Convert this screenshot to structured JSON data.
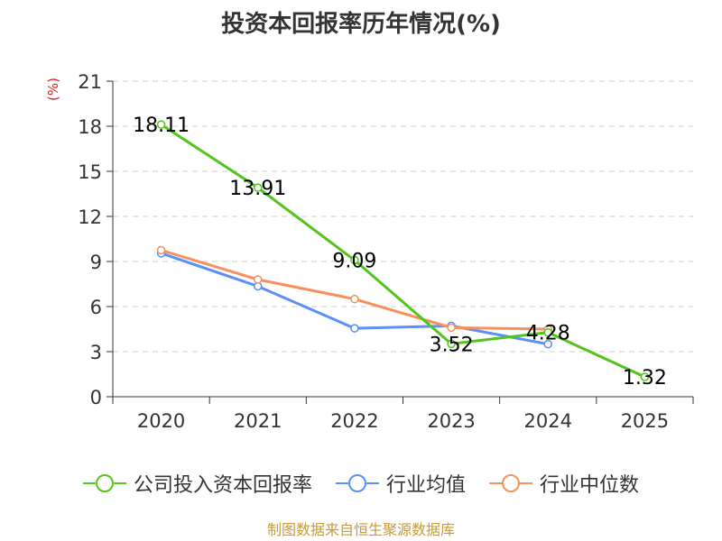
{
  "chart_data": {
    "type": "line",
    "title": "投资本回报率历年情况(%)",
    "unit_label": "(%)",
    "categories": [
      "2020",
      "2021",
      "2022",
      "2023",
      "2024",
      "2025"
    ],
    "ylim": [
      0,
      21
    ],
    "yticks": [
      "0",
      "3",
      "6",
      "9",
      "12",
      "15",
      "18",
      "21"
    ],
    "grid": true,
    "legend_position": "bottom",
    "series": [
      {
        "name": "公司投入资本回报率",
        "color": "#52c41a",
        "values": [
          18.11,
          13.91,
          9.09,
          3.52,
          4.28,
          1.32
        ],
        "labels": [
          "18.11",
          "13.91",
          "9.09",
          "3.52",
          "4.28",
          "1.32"
        ]
      },
      {
        "name": "行业均值",
        "color": "#5b8ff9",
        "values": [
          9.55,
          7.35,
          4.55,
          4.72,
          3.5,
          null
        ]
      },
      {
        "name": "行业中位数",
        "color": "#f6905d",
        "values": [
          9.75,
          7.8,
          6.5,
          4.6,
          4.5,
          null
        ]
      }
    ],
    "source": "制图数据来自恒生聚源数据库"
  }
}
